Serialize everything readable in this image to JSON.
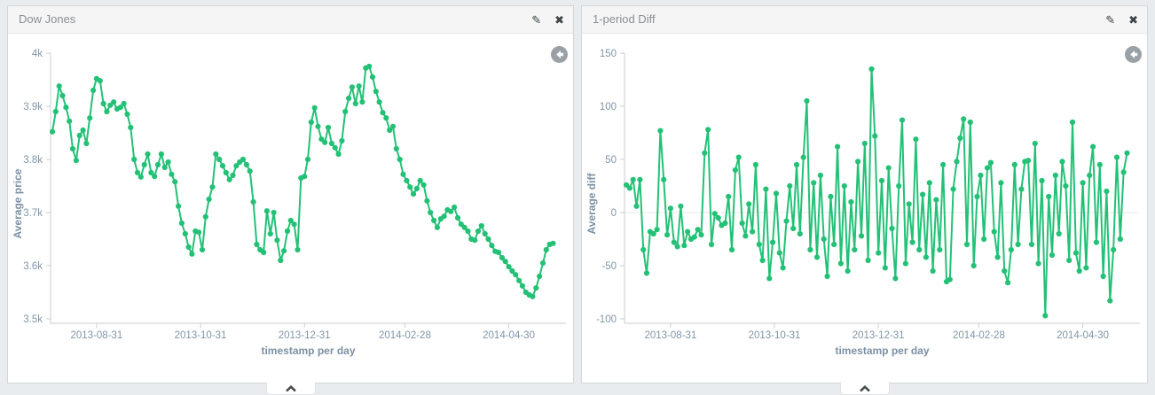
{
  "page": {
    "background": "#e8ecef",
    "accent_green": "#23c176"
  },
  "icons": {
    "edit": "✎",
    "close": "✖",
    "back": "history-back-arrow",
    "collapse": "chevron-up"
  },
  "panels": [
    {
      "title": "Dow Jones",
      "chart_data": {
        "type": "line",
        "title": "Dow Jones",
        "xlabel": "timestamp per day",
        "ylabel": "Average price",
        "color": "#23c176",
        "ylim": [
          3500,
          4000
        ],
        "y_tick_values": [
          4000,
          3900,
          3800,
          3700,
          3600,
          3500
        ],
        "y_tick_labels": [
          "4k",
          "3.9k",
          "3.8k",
          "3.7k",
          "3.6k",
          "3.5k"
        ],
        "x_ticks": [
          "2013-08-31",
          "2013-10-31",
          "2013-12-31",
          "2014-02-28",
          "2014-04-30"
        ],
        "zero_gridline": false,
        "grid": false,
        "legend": "none",
        "x": [
          "2013-08-05",
          "2013-08-07",
          "2013-08-09",
          "2013-08-11",
          "2013-08-13",
          "2013-08-15",
          "2013-08-17",
          "2013-08-19",
          "2013-08-21",
          "2013-08-23",
          "2013-08-25",
          "2013-08-27",
          "2013-08-29",
          "2013-08-31",
          "2013-09-02",
          "2013-09-04",
          "2013-09-06",
          "2013-09-08",
          "2013-09-10",
          "2013-09-12",
          "2013-09-14",
          "2013-09-16",
          "2013-09-18",
          "2013-09-20",
          "2013-09-22",
          "2013-09-24",
          "2013-09-26",
          "2013-09-28",
          "2013-09-30",
          "2013-10-02",
          "2013-10-04",
          "2013-10-06",
          "2013-10-08",
          "2013-10-10",
          "2013-10-12",
          "2013-10-14",
          "2013-10-16",
          "2013-10-18",
          "2013-10-20",
          "2013-10-22",
          "2013-10-24",
          "2013-10-26",
          "2013-10-28",
          "2013-10-30",
          "2013-11-01",
          "2013-11-03",
          "2013-11-05",
          "2013-11-07",
          "2013-11-09",
          "2013-11-11",
          "2013-11-13",
          "2013-11-15",
          "2013-11-17",
          "2013-11-19",
          "2013-11-21",
          "2013-11-23",
          "2013-11-25",
          "2013-11-27",
          "2013-11-29",
          "2013-12-01",
          "2013-12-03",
          "2013-12-05",
          "2013-12-07",
          "2013-12-09",
          "2013-12-11",
          "2013-12-13",
          "2013-12-15",
          "2013-12-17",
          "2013-12-19",
          "2013-12-21",
          "2013-12-23",
          "2013-12-25",
          "2013-12-27",
          "2013-12-29",
          "2013-12-31",
          "2014-01-02",
          "2014-01-04",
          "2014-01-06",
          "2014-01-08",
          "2014-01-10",
          "2014-01-12",
          "2014-01-14",
          "2014-01-16",
          "2014-01-18",
          "2014-01-20",
          "2014-01-22",
          "2014-01-24",
          "2014-01-26",
          "2014-01-28",
          "2014-01-30",
          "2014-02-01",
          "2014-02-03",
          "2014-02-05",
          "2014-02-07",
          "2014-02-09",
          "2014-02-11",
          "2014-02-13",
          "2014-02-15",
          "2014-02-17",
          "2014-02-19",
          "2014-02-21",
          "2014-02-23",
          "2014-02-25",
          "2014-02-27",
          "2014-03-01",
          "2014-03-03",
          "2014-03-05",
          "2014-03-07",
          "2014-03-09",
          "2014-03-11",
          "2014-03-13",
          "2014-03-15",
          "2014-03-17",
          "2014-03-19",
          "2014-03-21",
          "2014-03-23",
          "2014-03-25",
          "2014-03-27",
          "2014-03-29",
          "2014-03-31",
          "2014-04-02",
          "2014-04-04",
          "2014-04-06",
          "2014-04-08",
          "2014-04-10",
          "2014-04-12",
          "2014-04-14",
          "2014-04-16",
          "2014-04-18",
          "2014-04-20",
          "2014-04-22",
          "2014-04-24",
          "2014-04-26",
          "2014-04-28",
          "2014-04-30",
          "2014-05-02",
          "2014-05-04",
          "2014-05-06",
          "2014-05-08",
          "2014-05-10",
          "2014-05-12",
          "2014-05-14",
          "2014-05-16",
          "2014-05-18",
          "2014-05-20",
          "2014-05-22",
          "2014-05-24",
          "2014-05-26"
        ],
        "y": [
          3852,
          3890,
          3938,
          3920,
          3898,
          3872,
          3820,
          3798,
          3845,
          3855,
          3830,
          3878,
          3930,
          3952,
          3948,
          3905,
          3890,
          3902,
          3908,
          3895,
          3898,
          3905,
          3885,
          3860,
          3800,
          3775,
          3767,
          3790,
          3810,
          3775,
          3768,
          3790,
          3810,
          3785,
          3795,
          3772,
          3758,
          3712,
          3680,
          3660,
          3635,
          3622,
          3665,
          3663,
          3630,
          3692,
          3725,
          3748,
          3810,
          3800,
          3788,
          3775,
          3762,
          3770,
          3788,
          3795,
          3800,
          3790,
          3778,
          3720,
          3640,
          3630,
          3625,
          3703,
          3660,
          3700,
          3648,
          3610,
          3628,
          3665,
          3685,
          3678,
          3630,
          3765,
          3768,
          3800,
          3870,
          3897,
          3862,
          3838,
          3832,
          3860,
          3830,
          3822,
          3810,
          3835,
          3890,
          3915,
          3936,
          3905,
          3938,
          3908,
          3972,
          3975,
          3955,
          3928,
          3908,
          3888,
          3878,
          3855,
          3862,
          3820,
          3800,
          3772,
          3760,
          3748,
          3735,
          3745,
          3760,
          3752,
          3722,
          3700,
          3685,
          3672,
          3688,
          3693,
          3705,
          3702,
          3710,
          3690,
          3678,
          3672,
          3665,
          3650,
          3648,
          3665,
          3675,
          3660,
          3650,
          3638,
          3627,
          3625,
          3615,
          3608,
          3598,
          3590,
          3583,
          3572,
          3562,
          3550,
          3545,
          3542,
          3558,
          3580,
          3605,
          3630,
          3640,
          3642
        ]
      }
    },
    {
      "title": "1-period Diff",
      "chart_data": {
        "type": "line",
        "title": "1-period Diff",
        "xlabel": "timestamp per day",
        "ylabel": "Average diff",
        "color": "#23c176",
        "ylim": [
          -100,
          150
        ],
        "y_tick_values": [
          150,
          100,
          50,
          0,
          -50,
          -100
        ],
        "y_tick_labels": [
          "150",
          "100",
          "50",
          "0",
          "-50",
          "-100"
        ],
        "x_ticks": [
          "2013-08-31",
          "2013-10-31",
          "2013-12-31",
          "2014-02-28",
          "2014-04-30"
        ],
        "zero_gridline": true,
        "grid": false,
        "legend": "none",
        "x": [
          "2013-08-05",
          "2013-08-07",
          "2013-08-09",
          "2013-08-11",
          "2013-08-13",
          "2013-08-15",
          "2013-08-17",
          "2013-08-19",
          "2013-08-21",
          "2013-08-23",
          "2013-08-25",
          "2013-08-27",
          "2013-08-29",
          "2013-08-31",
          "2013-09-02",
          "2013-09-04",
          "2013-09-06",
          "2013-09-08",
          "2013-09-10",
          "2013-09-12",
          "2013-09-14",
          "2013-09-16",
          "2013-09-18",
          "2013-09-20",
          "2013-09-22",
          "2013-09-24",
          "2013-09-26",
          "2013-09-28",
          "2013-09-30",
          "2013-10-02",
          "2013-10-04",
          "2013-10-06",
          "2013-10-08",
          "2013-10-10",
          "2013-10-12",
          "2013-10-14",
          "2013-10-16",
          "2013-10-18",
          "2013-10-20",
          "2013-10-22",
          "2013-10-24",
          "2013-10-26",
          "2013-10-28",
          "2013-10-30",
          "2013-11-01",
          "2013-11-03",
          "2013-11-05",
          "2013-11-07",
          "2013-11-09",
          "2013-11-11",
          "2013-11-13",
          "2013-11-15",
          "2013-11-17",
          "2013-11-19",
          "2013-11-21",
          "2013-11-23",
          "2013-11-25",
          "2013-11-27",
          "2013-11-29",
          "2013-12-01",
          "2013-12-03",
          "2013-12-05",
          "2013-12-07",
          "2013-12-09",
          "2013-12-11",
          "2013-12-13",
          "2013-12-15",
          "2013-12-17",
          "2013-12-19",
          "2013-12-21",
          "2013-12-23",
          "2013-12-25",
          "2013-12-27",
          "2013-12-29",
          "2013-12-31",
          "2014-01-02",
          "2014-01-04",
          "2014-01-06",
          "2014-01-08",
          "2014-01-10",
          "2014-01-12",
          "2014-01-14",
          "2014-01-16",
          "2014-01-18",
          "2014-01-20",
          "2014-01-22",
          "2014-01-24",
          "2014-01-26",
          "2014-01-28",
          "2014-01-30",
          "2014-02-01",
          "2014-02-03",
          "2014-02-05",
          "2014-02-07",
          "2014-02-09",
          "2014-02-11",
          "2014-02-13",
          "2014-02-15",
          "2014-02-17",
          "2014-02-19",
          "2014-02-21",
          "2014-02-23",
          "2014-02-25",
          "2014-02-27",
          "2014-03-01",
          "2014-03-03",
          "2014-03-05",
          "2014-03-07",
          "2014-03-09",
          "2014-03-11",
          "2014-03-13",
          "2014-03-15",
          "2014-03-17",
          "2014-03-19",
          "2014-03-21",
          "2014-03-23",
          "2014-03-25",
          "2014-03-27",
          "2014-03-29",
          "2014-03-31",
          "2014-04-02",
          "2014-04-04",
          "2014-04-06",
          "2014-04-08",
          "2014-04-10",
          "2014-04-12",
          "2014-04-14",
          "2014-04-16",
          "2014-04-18",
          "2014-04-20",
          "2014-04-22",
          "2014-04-24",
          "2014-04-26",
          "2014-04-28",
          "2014-04-30",
          "2014-05-02",
          "2014-05-04",
          "2014-05-06",
          "2014-05-08",
          "2014-05-10",
          "2014-05-12",
          "2014-05-14",
          "2014-05-16",
          "2014-05-18",
          "2014-05-20",
          "2014-05-22",
          "2014-05-24",
          "2014-05-26"
        ],
        "y": [
          26,
          23,
          31,
          6,
          31,
          -35,
          -57,
          -18,
          -20,
          -16,
          77,
          31,
          -21,
          4,
          -28,
          -32,
          6,
          -31,
          -18,
          -25,
          -23,
          -16,
          -21,
          56,
          78,
          -30,
          -1,
          -5,
          -12,
          -10,
          15,
          -35,
          40,
          52,
          -10,
          -22,
          8,
          -18,
          45,
          -30,
          -45,
          22,
          -62,
          -28,
          18,
          -38,
          -52,
          -8,
          25,
          -15,
          45,
          -20,
          52,
          105,
          -35,
          28,
          -42,
          35,
          -25,
          -60,
          15,
          -30,
          62,
          -48,
          25,
          -55,
          10,
          -35,
          48,
          -22,
          65,
          -45,
          135,
          72,
          -38,
          30,
          -52,
          42,
          -15,
          -62,
          25,
          87,
          -48,
          8,
          -28,
          69,
          -35,
          17,
          -42,
          28,
          -55,
          12,
          -35,
          45,
          -65,
          -63,
          22,
          48,
          70,
          88,
          -30,
          85,
          -50,
          15,
          35,
          -25,
          42,
          47,
          -18,
          -42,
          28,
          -55,
          -66,
          -35,
          45,
          -30,
          22,
          48,
          49,
          -30,
          65,
          -48,
          30,
          -97,
          15,
          -40,
          35,
          -20,
          48,
          25,
          -45,
          85,
          -38,
          -55,
          28,
          -52,
          35,
          62,
          -28,
          45,
          -60,
          20,
          -83,
          -35,
          52,
          -25,
          38,
          56
        ]
      }
    }
  ]
}
